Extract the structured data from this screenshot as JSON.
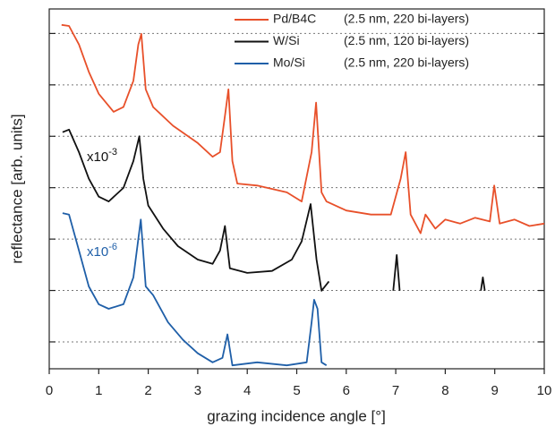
{
  "chart_data": {
    "type": "line",
    "x_label": "grazing incidence angle [°]",
    "y_label": "reflectance [arb. units]",
    "y_log_scale": true,
    "grid": true,
    "legend_position": "top-right",
    "xlim": [
      0,
      10
    ],
    "xticks": [
      0,
      1,
      2,
      3,
      4,
      5,
      6,
      7,
      8,
      9,
      10
    ],
    "ylim": [
      3e-13,
      3e-06
    ],
    "yticks": [
      1e-12,
      1e-11,
      1e-10,
      1e-09,
      1e-08,
      1e-07,
      1e-06
    ],
    "series": [
      {
        "name": "Pd/B4C",
        "detail": "(2.5 nm, 220 bi-layers)",
        "color": "#e8502a",
        "x": [
          0.25,
          0.4,
          0.6,
          0.8,
          1.0,
          1.3,
          1.5,
          1.7,
          1.8,
          1.86,
          1.95,
          2.1,
          2.5,
          3.0,
          3.3,
          3.45,
          3.55,
          3.62,
          3.7,
          3.8,
          4.2,
          4.8,
          5.1,
          5.3,
          5.39,
          5.5,
          5.6,
          6.0,
          6.5,
          6.9,
          7.1,
          7.2,
          7.3,
          7.5,
          7.6,
          7.8,
          8.0,
          8.3,
          8.6,
          8.9,
          8.99,
          9.1,
          9.4,
          9.7,
          10.0
        ],
        "values": [
          1.47e-06,
          1.4e-06,
          6.1e-07,
          1.8e-07,
          6.7e-08,
          3e-08,
          3.7e-08,
          1.2e-07,
          6.1e-07,
          9.8e-07,
          8.2e-08,
          3.7e-08,
          1.6e-08,
          7.4e-09,
          4e-09,
          4.9e-09,
          2.5e-08,
          8.2e-08,
          3.3e-09,
          1.2e-09,
          1.1e-09,
          8.1e-10,
          5.4e-10,
          4.9e-09,
          4.5e-08,
          8.1e-10,
          5.4e-10,
          3.6e-10,
          3e-10,
          3e-10,
          1.5e-09,
          4.9e-09,
          3e-10,
          1.3e-10,
          3e-10,
          1.6e-10,
          2.4e-10,
          2e-10,
          2.6e-10,
          2.2e-10,
          1.1e-09,
          2e-10,
          2.4e-10,
          1.8e-10,
          2e-10
        ]
      },
      {
        "name": "W/Si",
        "detail": "(2.5 nm, 120 bi-layers)",
        "color": "#111111",
        "x": [
          0.27,
          0.4,
          0.6,
          0.8,
          1.0,
          1.2,
          1.5,
          1.7,
          1.82,
          1.9,
          2.0,
          2.3,
          2.6,
          3.0,
          3.3,
          3.45,
          3.55,
          3.65,
          4.0,
          4.5,
          4.9,
          5.1,
          5.28,
          5.4,
          5.5,
          5.65,
          6.05,
          6.95,
          7.02,
          7.08,
          7.5,
          8.72,
          8.76,
          8.8
        ],
        "values": [
          1.2e-08,
          1.35e-08,
          4.9e-09,
          1.5e-09,
          6.7e-10,
          5.4e-10,
          9.9e-10,
          3.3e-09,
          1e-08,
          1.5e-09,
          4.5e-10,
          1.6e-10,
          7.3e-11,
          4e-11,
          3.3e-11,
          6e-11,
          1.8e-10,
          2.7e-11,
          2.2e-11,
          2.4e-11,
          4e-11,
          9e-11,
          4.8e-10,
          4e-11,
          9.9e-12,
          1.5e-11,
          null,
          9.9e-12,
          4.9e-11,
          9.9e-12,
          null,
          9.9e-12,
          1.8e-11,
          9.9e-12
        ]
      },
      {
        "name": "Mo/Si",
        "detail": "(2.5 nm, 220 bi-layers)",
        "color": "#1f5fa8",
        "x": [
          0.27,
          0.4,
          0.6,
          0.8,
          1.0,
          1.2,
          1.5,
          1.7,
          1.85,
          1.95,
          2.1,
          2.4,
          2.7,
          3.0,
          3.3,
          3.5,
          3.6,
          3.7,
          4.2,
          4.8,
          5.2,
          5.3,
          5.35,
          5.42,
          5.5,
          5.6
        ],
        "values": [
          3.2e-10,
          3e-10,
          6e-11,
          1.2e-11,
          5.4e-12,
          4.4e-12,
          5.4e-12,
          1.8e-11,
          2.4e-10,
          1.2e-11,
          8.1e-12,
          2.4e-12,
          1.1e-12,
          6e-13,
          4e-13,
          4.9e-13,
          1.4e-12,
          3.5e-13,
          4e-13,
          3.5e-13,
          4e-13,
          2.4e-12,
          6.6e-12,
          4.4e-12,
          4e-13,
          3.5e-13
        ]
      }
    ],
    "annotations": [
      {
        "base": "x10",
        "exponent": "-3",
        "color": "#111111"
      },
      {
        "base": "x10",
        "exponent": "-6",
        "color": "#1f5fa8"
      }
    ]
  }
}
